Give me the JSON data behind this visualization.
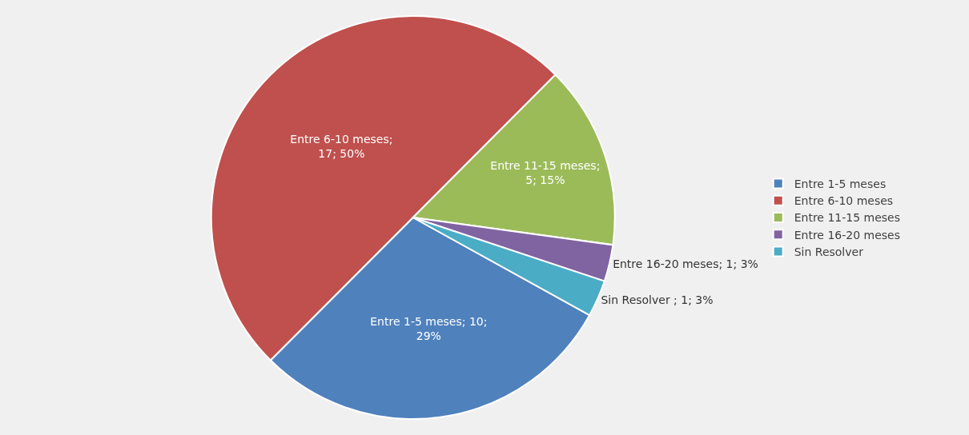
{
  "chart_data": {
    "type": "pie",
    "categories": [
      "Entre 1-5 meses",
      "Entre 6-10 meses",
      "Entre 11-15 meses",
      "Entre 16-20 meses",
      "Sin Resolver"
    ],
    "values": [
      10,
      17,
      5,
      1,
      1
    ],
    "colors": [
      "#4f81bd",
      "#c0504d",
      "#9bbb59",
      "#8064a2",
      "#4bacc6"
    ],
    "value_labels": [
      "Entre 1-5 meses; 10; 29%",
      "Entre 6-10 meses; 17; 50%",
      "Entre 11-15 meses; 5; 15%",
      "Entre 16-20 meses; 1; 3%",
      "Sin Resolver ; 1; 3%"
    ],
    "legend": "right"
  }
}
